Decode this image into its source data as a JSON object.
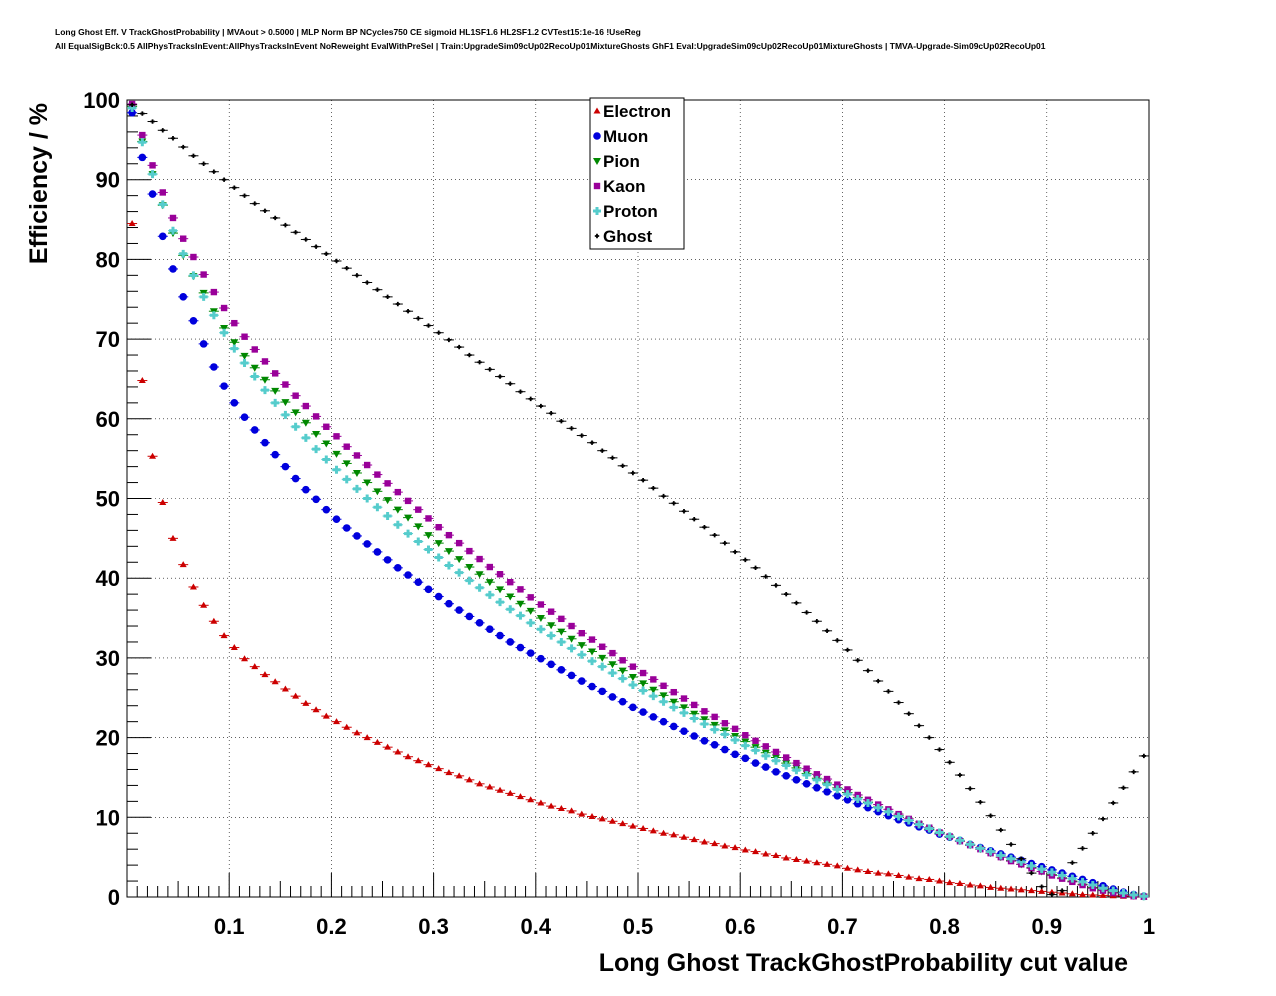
{
  "title_line1": "Long Ghost Eff. V TrackGhostProbability | MVAout > 0.5000 | MLP Norm BP NCycles750 CE sigmoid HL1SF1.6 HL2SF1.2 CVTest15:1e-16 !UseReg",
  "title_line2": "All EqualSigBck:0.5 AllPhysTracksInEvent:AllPhysTracksInEvent NoReweight EvalWithPreSel | Train:UpgradeSim09cUp02RecoUp01MixtureGhosts GhF1 Eval:UpgradeSim09cUp02RecoUp01MixtureGhosts | TMVA-Upgrade-Sim09cUp02RecoUp01",
  "chart_data": {
    "type": "scatter",
    "xlabel": "Long Ghost TrackGhostProbability cut value",
    "ylabel": "Efficiency / %",
    "xlim": [
      0,
      1
    ],
    "ylim": [
      0,
      100
    ],
    "x_ticks": [
      "0.1",
      "0.2",
      "0.3",
      "0.4",
      "0.5",
      "0.6",
      "0.7",
      "0.8",
      "0.9",
      "1"
    ],
    "y_ticks": [
      "0",
      "10",
      "20",
      "30",
      "40",
      "50",
      "60",
      "70",
      "80",
      "90",
      "100"
    ],
    "grid": true,
    "legend_position": "top-center",
    "x": [
      0.005,
      0.015,
      0.025,
      0.035,
      0.045,
      0.055,
      0.065,
      0.075,
      0.085,
      0.095,
      0.105,
      0.115,
      0.125,
      0.135,
      0.145,
      0.155,
      0.165,
      0.175,
      0.185,
      0.195,
      0.205,
      0.215,
      0.225,
      0.235,
      0.245,
      0.255,
      0.265,
      0.275,
      0.285,
      0.295,
      0.305,
      0.315,
      0.325,
      0.335,
      0.345,
      0.355,
      0.365,
      0.375,
      0.385,
      0.395,
      0.405,
      0.415,
      0.425,
      0.435,
      0.445,
      0.455,
      0.465,
      0.475,
      0.485,
      0.495,
      0.505,
      0.515,
      0.525,
      0.535,
      0.545,
      0.555,
      0.565,
      0.575,
      0.585,
      0.595,
      0.605,
      0.615,
      0.625,
      0.635,
      0.645,
      0.655,
      0.665,
      0.675,
      0.685,
      0.695,
      0.705,
      0.715,
      0.725,
      0.735,
      0.745,
      0.755,
      0.765,
      0.775,
      0.785,
      0.795,
      0.805,
      0.815,
      0.825,
      0.835,
      0.845,
      0.855,
      0.865,
      0.875,
      0.885,
      0.895,
      0.905,
      0.915,
      0.925,
      0.935,
      0.945,
      0.955,
      0.965,
      0.975,
      0.985,
      0.995
    ],
    "series": [
      {
        "name": "Electron",
        "color": "#cc0000",
        "marker": "triangle",
        "values": [
          84.5,
          64.8,
          55.3,
          49.5,
          45.0,
          41.7,
          38.9,
          36.6,
          34.6,
          32.8,
          31.3,
          29.9,
          28.9,
          27.9,
          27.0,
          26.1,
          25.2,
          24.3,
          23.5,
          22.7,
          22.0,
          21.3,
          20.6,
          20.0,
          19.4,
          18.8,
          18.2,
          17.6,
          17.1,
          16.6,
          16.1,
          15.6,
          15.2,
          14.7,
          14.2,
          13.8,
          13.4,
          13.0,
          12.6,
          12.2,
          11.8,
          11.4,
          11.1,
          10.8,
          10.4,
          10.1,
          9.8,
          9.5,
          9.2,
          8.9,
          8.6,
          8.3,
          8.0,
          7.8,
          7.5,
          7.2,
          6.9,
          6.7,
          6.4,
          6.2,
          5.9,
          5.7,
          5.4,
          5.2,
          4.9,
          4.7,
          4.5,
          4.3,
          4.1,
          3.9,
          3.6,
          3.4,
          3.2,
          3.0,
          2.9,
          2.7,
          2.5,
          2.3,
          2.2,
          2.0,
          1.8,
          1.7,
          1.5,
          1.4,
          1.2,
          1.1,
          1.0,
          0.9,
          0.8,
          0.7,
          0.6,
          0.5,
          0.4,
          0.3,
          0.25,
          0.2,
          0.15,
          0.1,
          0.05,
          0.0
        ]
      },
      {
        "name": "Muon",
        "color": "#0000dd",
        "marker": "circle",
        "values": [
          98.4,
          92.8,
          88.2,
          82.9,
          78.8,
          75.3,
          72.3,
          69.4,
          66.5,
          64.1,
          62.0,
          60.2,
          58.6,
          57.0,
          55.5,
          54.0,
          52.5,
          51.1,
          49.9,
          48.6,
          47.4,
          46.3,
          45.3,
          44.3,
          43.3,
          42.3,
          41.3,
          40.4,
          39.5,
          38.6,
          37.7,
          36.8,
          36.0,
          35.2,
          34.4,
          33.6,
          32.8,
          32.0,
          31.3,
          30.6,
          29.9,
          29.2,
          28.5,
          27.8,
          27.1,
          26.4,
          25.8,
          25.1,
          24.5,
          23.8,
          23.2,
          22.6,
          22.0,
          21.4,
          20.8,
          20.2,
          19.6,
          19.1,
          18.5,
          17.9,
          17.4,
          16.8,
          16.3,
          15.7,
          15.2,
          14.7,
          14.2,
          13.7,
          13.2,
          12.7,
          12.2,
          11.7,
          11.2,
          10.7,
          10.2,
          9.7,
          9.3,
          8.8,
          8.4,
          7.9,
          7.5,
          7.1,
          6.6,
          6.2,
          5.8,
          5.4,
          5.0,
          4.6,
          4.2,
          3.8,
          3.4,
          3.0,
          2.6,
          2.2,
          1.8,
          1.4,
          1.0,
          0.6,
          0.3,
          0.1
        ]
      },
      {
        "name": "Pion",
        "color": "#008800",
        "marker": "triangle-down",
        "values": [
          99.2,
          94.8,
          90.7,
          86.8,
          83.3,
          80.5,
          77.9,
          75.8,
          73.5,
          71.4,
          69.6,
          67.9,
          66.4,
          64.9,
          63.5,
          62.1,
          60.8,
          59.5,
          58.1,
          56.9,
          55.6,
          54.4,
          53.2,
          52.0,
          50.9,
          49.8,
          48.6,
          47.6,
          46.5,
          45.4,
          44.4,
          43.4,
          42.4,
          41.4,
          40.5,
          39.5,
          38.6,
          37.7,
          36.8,
          35.9,
          35.0,
          34.1,
          33.3,
          32.4,
          31.6,
          30.8,
          30.0,
          29.2,
          28.4,
          27.6,
          26.8,
          26.0,
          25.3,
          24.5,
          23.8,
          23.0,
          22.3,
          21.6,
          20.9,
          20.2,
          19.5,
          18.8,
          18.1,
          17.5,
          16.8,
          16.2,
          15.5,
          14.9,
          14.3,
          13.7,
          13.1,
          12.5,
          11.9,
          11.3,
          10.7,
          10.2,
          9.6,
          9.1,
          8.5,
          8.0,
          7.5,
          7.0,
          6.5,
          6.0,
          5.5,
          5.0,
          4.6,
          4.1,
          3.7,
          3.2,
          2.8,
          2.4,
          2.0,
          1.6,
          1.2,
          0.9,
          0.6,
          0.3,
          0.15,
          0.05
        ]
      },
      {
        "name": "Kaon",
        "color": "#990099",
        "marker": "square",
        "values": [
          99.5,
          95.6,
          91.8,
          88.4,
          85.2,
          82.6,
          80.3,
          78.1,
          75.9,
          73.9,
          72.0,
          70.3,
          68.7,
          67.2,
          65.7,
          64.3,
          62.9,
          61.6,
          60.3,
          59.0,
          57.8,
          56.5,
          55.4,
          54.2,
          53.0,
          51.9,
          50.8,
          49.7,
          48.6,
          47.5,
          46.4,
          45.4,
          44.4,
          43.4,
          42.4,
          41.4,
          40.5,
          39.5,
          38.6,
          37.6,
          36.7,
          35.8,
          34.9,
          34.0,
          33.1,
          32.3,
          31.4,
          30.6,
          29.7,
          28.9,
          28.1,
          27.3,
          26.5,
          25.7,
          24.9,
          24.1,
          23.3,
          22.6,
          21.8,
          21.1,
          20.3,
          19.6,
          18.9,
          18.2,
          17.5,
          16.8,
          16.1,
          15.4,
          14.8,
          14.1,
          13.5,
          12.8,
          12.2,
          11.6,
          11.0,
          10.4,
          9.8,
          9.2,
          8.7,
          8.1,
          7.6,
          7.0,
          6.5,
          6.0,
          5.5,
          5.0,
          4.5,
          4.1,
          3.6,
          3.2,
          2.7,
          2.3,
          1.9,
          1.5,
          1.1,
          0.8,
          0.5,
          0.25,
          0.1,
          0.03
        ]
      },
      {
        "name": "Proton",
        "color": "#55cccc",
        "marker": "cross",
        "values": [
          99.0,
          94.7,
          90.7,
          86.9,
          83.6,
          80.7,
          78.0,
          75.3,
          73.0,
          70.8,
          68.8,
          67.0,
          65.3,
          63.6,
          62.0,
          60.5,
          59.0,
          57.6,
          56.2,
          54.9,
          53.6,
          52.4,
          51.2,
          50.0,
          48.9,
          47.8,
          46.7,
          45.6,
          44.6,
          43.6,
          42.6,
          41.6,
          40.7,
          39.7,
          38.8,
          37.9,
          37.0,
          36.1,
          35.3,
          34.4,
          33.6,
          32.8,
          32.0,
          31.2,
          30.4,
          29.6,
          28.9,
          28.1,
          27.4,
          26.6,
          25.9,
          25.2,
          24.5,
          23.8,
          23.1,
          22.4,
          21.7,
          21.0,
          20.4,
          19.7,
          19.0,
          18.4,
          17.7,
          17.1,
          16.5,
          15.9,
          15.3,
          14.7,
          14.1,
          13.5,
          12.9,
          12.3,
          11.8,
          11.2,
          10.7,
          10.1,
          9.6,
          9.1,
          8.6,
          8.1,
          7.6,
          7.1,
          6.6,
          6.1,
          5.7,
          5.2,
          4.8,
          4.4,
          3.9,
          3.5,
          3.1,
          2.7,
          2.3,
          1.9,
          1.5,
          1.1,
          0.8,
          0.5,
          0.25,
          0.1
        ]
      },
      {
        "name": "Ghost",
        "color": "#000000",
        "marker": "cross-small",
        "values": [
          99.4,
          98.3,
          97.3,
          96.2,
          95.2,
          94.1,
          93.0,
          92.0,
          91.0,
          90.0,
          89.0,
          88.0,
          87.0,
          86.1,
          85.2,
          84.3,
          83.4,
          82.5,
          81.6,
          80.7,
          79.8,
          78.9,
          78.0,
          77.1,
          76.2,
          75.3,
          74.4,
          73.5,
          72.6,
          71.7,
          70.8,
          69.9,
          69.0,
          68.0,
          67.1,
          66.2,
          65.3,
          64.4,
          63.4,
          62.5,
          61.6,
          60.7,
          59.7,
          58.8,
          57.9,
          57.0,
          56.0,
          55.1,
          54.1,
          53.2,
          52.3,
          51.3,
          50.3,
          49.4,
          48.4,
          47.4,
          46.4,
          45.4,
          44.4,
          43.3,
          42.3,
          41.3,
          40.2,
          39.1,
          38.0,
          36.9,
          35.7,
          34.6,
          33.4,
          32.2,
          31.0,
          29.7,
          28.4,
          27.1,
          25.8,
          24.4,
          23.0,
          21.5,
          20.0,
          18.5,
          16.9,
          15.3,
          13.6,
          11.9,
          10.2,
          8.4,
          6.6,
          4.8,
          3.0,
          1.3,
          0.3,
          0.8,
          4.3,
          6.1,
          8.0,
          9.8,
          11.8,
          13.7,
          15.7,
          17.7
        ]
      }
    ]
  }
}
